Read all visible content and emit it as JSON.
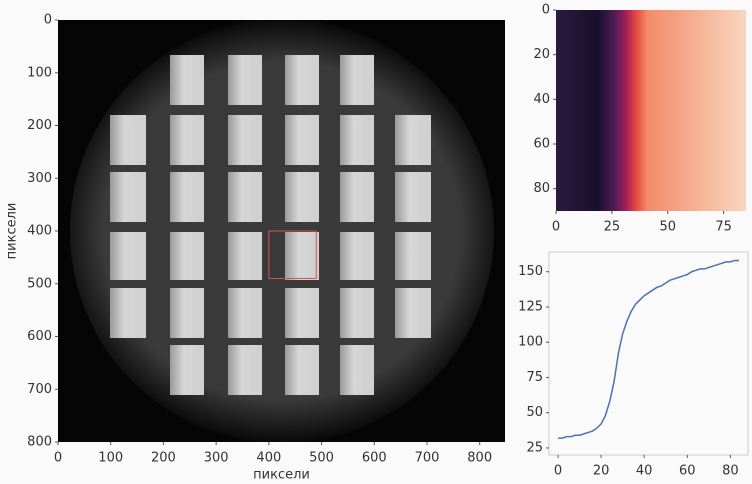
{
  "chart_data": [
    {
      "type": "image",
      "xlabel": "пиксели",
      "ylabel": "пиксели",
      "xlim": [
        0,
        848
      ],
      "ylim": [
        0,
        800
      ],
      "y_inverted": true,
      "xticks": [
        0,
        100,
        200,
        300,
        400,
        500,
        600,
        700,
        800
      ],
      "yticks": [
        0,
        100,
        200,
        300,
        400,
        500,
        600,
        700,
        800
      ],
      "highlight": {
        "x": 400,
        "y": 400,
        "width": 90,
        "height": 90,
        "color": "#d9534f"
      }
    },
    {
      "type": "image",
      "xlim": [
        0,
        85
      ],
      "ylim": [
        0,
        90
      ],
      "y_inverted": true,
      "xticks": [
        0,
        25,
        50,
        75
      ],
      "yticks": [
        0,
        20,
        40,
        60,
        80
      ]
    },
    {
      "type": "line",
      "xlim": [
        -4.2,
        88.2
      ],
      "ylim": [
        20,
        164
      ],
      "xticks": [
        0,
        20,
        40,
        60,
        80
      ],
      "yticks": [
        25,
        50,
        75,
        100,
        125,
        150
      ],
      "x": [
        0,
        2,
        4,
        6,
        8,
        10,
        12,
        14,
        16,
        18,
        20,
        22,
        24,
        26,
        28,
        30,
        32,
        34,
        36,
        38,
        40,
        42,
        44,
        46,
        48,
        50,
        52,
        54,
        56,
        58,
        60,
        62,
        64,
        66,
        68,
        70,
        72,
        74,
        76,
        78,
        80,
        82,
        84
      ],
      "series": [
        {
          "color": "#4c72b0",
          "values": [
            32,
            32,
            33,
            33,
            34,
            34,
            35,
            36,
            37,
            39,
            42,
            48,
            58,
            72,
            92,
            106,
            115,
            122,
            127,
            130,
            133,
            135,
            137,
            139,
            140,
            142,
            144,
            145,
            146,
            147,
            148,
            150,
            151,
            152,
            152,
            153,
            154,
            155,
            156,
            157,
            157,
            158,
            158
          ]
        }
      ]
    }
  ]
}
